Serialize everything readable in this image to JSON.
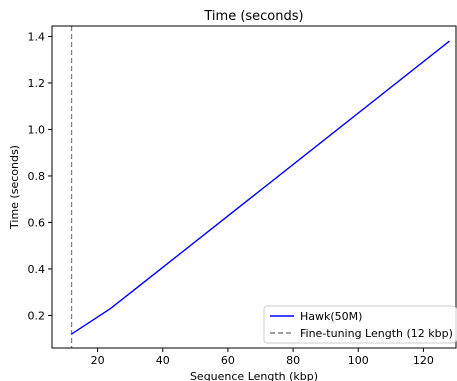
{
  "chart_data": {
    "type": "line",
    "title": "Time (seconds)",
    "xlabel": "Sequence Length (kbp)",
    "ylabel": "Time (seconds)",
    "xlim": [
      6,
      130
    ],
    "ylim": [
      0.06,
      1.445
    ],
    "xticks": [
      20,
      40,
      60,
      80,
      100,
      120
    ],
    "yticks": [
      0.2,
      0.4,
      0.6,
      0.8,
      1.0,
      1.2,
      1.4
    ],
    "xtick_labels": [
      "20",
      "40",
      "60",
      "80",
      "100",
      "120"
    ],
    "ytick_labels": [
      "0.2",
      "0.4",
      "0.6",
      "0.8",
      "1.0",
      "1.2",
      "1.4"
    ],
    "grid": false,
    "legend_position": "lower-right",
    "series": [
      {
        "name": "Hawk(50M)",
        "color": "#0000ff",
        "style": "solid",
        "x": [
          12,
          24,
          128
        ],
        "y": [
          0.12,
          0.23,
          1.38
        ]
      }
    ],
    "reference_lines": [
      {
        "name": "Fine-tuning Length (12 kbp)",
        "orientation": "vertical",
        "x": 12,
        "color": "#808080",
        "style": "dashed"
      }
    ]
  }
}
